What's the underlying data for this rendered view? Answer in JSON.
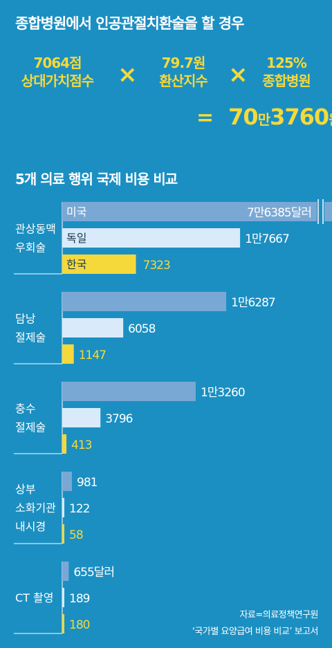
{
  "formula": {
    "title": "종합병원에서 인공관절치환술을 할 경우",
    "terms": [
      {
        "value": "7064점",
        "label": "상대가치점수"
      },
      {
        "value": "79.7원",
        "label": "환산지수"
      },
      {
        "value": "125%",
        "label": "종합병원"
      }
    ],
    "times": "×",
    "equals": "=",
    "result_parts": [
      "70",
      "만",
      "3760",
      "원"
    ]
  },
  "chart_data": {
    "type": "bar",
    "title": "5개 의료 행위 국제 비용 비교",
    "unit": "달러",
    "xlim": [
      0,
      76385
    ],
    "axis_break": true,
    "series": [
      {
        "name": "미국",
        "color": "#7aa8d4",
        "values": [
          76385,
          16287,
          13260,
          981,
          655
        ]
      },
      {
        "name": "독일",
        "color": "#d9ebfa",
        "values": [
          17667,
          6058,
          3796,
          122,
          189
        ]
      },
      {
        "name": "한국",
        "color": "#f5d93b",
        "values": [
          7323,
          1147,
          413,
          58,
          180
        ]
      }
    ],
    "groups": [
      {
        "label_lines": [
          "관상동맥",
          "우회술"
        ],
        "value_labels": [
          "7만6385달러",
          "1만7667",
          "7323"
        ]
      },
      {
        "label_lines": [
          "담낭",
          "절제술"
        ],
        "value_labels": [
          "1만6287",
          "6058",
          "1147"
        ]
      },
      {
        "label_lines": [
          "충수",
          "절제술"
        ],
        "value_labels": [
          "1만3260",
          "3796",
          "413"
        ]
      },
      {
        "label_lines": [
          "상부",
          "소화기관",
          "내시경"
        ],
        "value_labels": [
          "981",
          "122",
          "58"
        ]
      },
      {
        "label_lines": [
          "CT 촬영"
        ],
        "value_labels": [
          "655달러",
          "189",
          "180"
        ]
      }
    ]
  },
  "source": {
    "line1": "자료=의료정책연구원",
    "line2": "‘국가별 요양급여 비용 비교’ 보고서"
  }
}
